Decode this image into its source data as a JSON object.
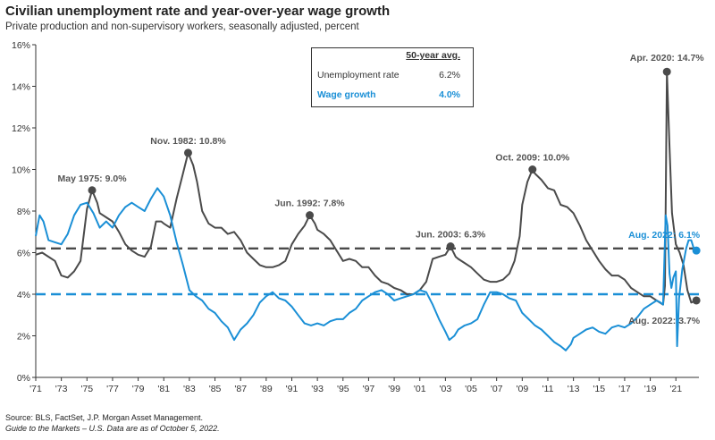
{
  "title": "Civilian unemployment rate and year-over-year wage growth",
  "subtitle": "Private production and non-supervisory workers, seasonally adjusted, percent",
  "footer": {
    "source": "Source: BLS, FactSet, J.P. Morgan Asset Management.",
    "note": "Guide to the Markets – U.S. Data are as of October 5, 2022."
  },
  "legend": {
    "header": "50-year avg.",
    "unemployment_label": "Unemployment rate",
    "unemployment_avg": "6.2%",
    "wage_label": "Wage growth",
    "wage_avg": "4.0%"
  },
  "colors": {
    "unemployment": "#4a4a4a",
    "wage": "#1a8fd6"
  },
  "chart_data": {
    "type": "line",
    "xlim": [
      1971,
      2022.8
    ],
    "ylim": [
      0,
      16
    ],
    "x_tick_labels": [
      "'71",
      "'73",
      "'75",
      "'77",
      "'79",
      "'81",
      "'83",
      "'85",
      "'87",
      "'89",
      "'91",
      "'93",
      "'95",
      "'97",
      "'99",
      "'01",
      "'03",
      "'05",
      "'07",
      "'09",
      "'11",
      "'13",
      "'15",
      "'17",
      "'19",
      "'21"
    ],
    "x_tick_values": [
      1971,
      1973,
      1975,
      1977,
      1979,
      1981,
      1983,
      1985,
      1987,
      1989,
      1991,
      1993,
      1995,
      1997,
      1999,
      2001,
      2003,
      2005,
      2007,
      2009,
      2011,
      2013,
      2015,
      2017,
      2019,
      2021
    ],
    "y_ticks": [
      0,
      2,
      4,
      6,
      8,
      10,
      12,
      14,
      16
    ],
    "y_tick_labels": [
      "0%",
      "2%",
      "4%",
      "6%",
      "8%",
      "10%",
      "12%",
      "14%",
      "16%"
    ],
    "averages": [
      {
        "series": "Unemployment rate",
        "value": 6.2
      },
      {
        "series": "Wage growth",
        "value": 4.0
      }
    ],
    "series": [
      {
        "name": "Unemployment rate",
        "points": [
          [
            1971,
            5.9
          ],
          [
            1971.5,
            6.0
          ],
          [
            1972,
            5.8
          ],
          [
            1972.5,
            5.6
          ],
          [
            1973,
            4.9
          ],
          [
            1973.5,
            4.8
          ],
          [
            1974,
            5.1
          ],
          [
            1974.5,
            5.6
          ],
          [
            1975,
            8.1
          ],
          [
            1975.4,
            9.0
          ],
          [
            1975.8,
            8.4
          ],
          [
            1976,
            7.9
          ],
          [
            1976.5,
            7.7
          ],
          [
            1977,
            7.5
          ],
          [
            1977.5,
            7.0
          ],
          [
            1978,
            6.4
          ],
          [
            1978.5,
            6.1
          ],
          [
            1979,
            5.9
          ],
          [
            1979.5,
            5.8
          ],
          [
            1980,
            6.3
          ],
          [
            1980.4,
            7.5
          ],
          [
            1980.8,
            7.5
          ],
          [
            1981,
            7.4
          ],
          [
            1981.5,
            7.2
          ],
          [
            1982,
            8.6
          ],
          [
            1982.5,
            9.8
          ],
          [
            1982.9,
            10.8
          ],
          [
            1983.3,
            10.2
          ],
          [
            1983.6,
            9.4
          ],
          [
            1984,
            8.0
          ],
          [
            1984.5,
            7.4
          ],
          [
            1985,
            7.2
          ],
          [
            1985.5,
            7.2
          ],
          [
            1986,
            6.9
          ],
          [
            1986.5,
            7.0
          ],
          [
            1987,
            6.6
          ],
          [
            1987.5,
            6.0
          ],
          [
            1988,
            5.7
          ],
          [
            1988.5,
            5.4
          ],
          [
            1989,
            5.3
          ],
          [
            1989.5,
            5.3
          ],
          [
            1990,
            5.4
          ],
          [
            1990.5,
            5.6
          ],
          [
            1991,
            6.4
          ],
          [
            1991.5,
            6.9
          ],
          [
            1992,
            7.3
          ],
          [
            1992.4,
            7.8
          ],
          [
            1992.8,
            7.4
          ],
          [
            1993,
            7.1
          ],
          [
            1993.5,
            6.9
          ],
          [
            1994,
            6.6
          ],
          [
            1994.5,
            6.1
          ],
          [
            1995,
            5.6
          ],
          [
            1995.5,
            5.7
          ],
          [
            1996,
            5.6
          ],
          [
            1996.5,
            5.3
          ],
          [
            1997,
            5.3
          ],
          [
            1997.5,
            4.9
          ],
          [
            1998,
            4.6
          ],
          [
            1998.5,
            4.5
          ],
          [
            1999,
            4.3
          ],
          [
            1999.5,
            4.2
          ],
          [
            2000,
            4.0
          ],
          [
            2000.5,
            4.0
          ],
          [
            2001,
            4.2
          ],
          [
            2001.5,
            4.6
          ],
          [
            2002,
            5.7
          ],
          [
            2002.5,
            5.8
          ],
          [
            2003,
            5.9
          ],
          [
            2003.4,
            6.3
          ],
          [
            2003.8,
            5.8
          ],
          [
            2004,
            5.7
          ],
          [
            2004.5,
            5.5
          ],
          [
            2005,
            5.3
          ],
          [
            2005.5,
            5.0
          ],
          [
            2006,
            4.7
          ],
          [
            2006.5,
            4.6
          ],
          [
            2007,
            4.6
          ],
          [
            2007.5,
            4.7
          ],
          [
            2008,
            5.0
          ],
          [
            2008.4,
            5.6
          ],
          [
            2008.8,
            6.8
          ],
          [
            2009,
            8.3
          ],
          [
            2009.4,
            9.4
          ],
          [
            2009.8,
            10.0
          ],
          [
            2010,
            9.8
          ],
          [
            2010.5,
            9.5
          ],
          [
            2011,
            9.1
          ],
          [
            2011.5,
            9.0
          ],
          [
            2012,
            8.3
          ],
          [
            2012.5,
            8.2
          ],
          [
            2013,
            7.9
          ],
          [
            2013.5,
            7.3
          ],
          [
            2014,
            6.6
          ],
          [
            2014.5,
            6.1
          ],
          [
            2015,
            5.6
          ],
          [
            2015.5,
            5.2
          ],
          [
            2016,
            4.9
          ],
          [
            2016.5,
            4.9
          ],
          [
            2017,
            4.7
          ],
          [
            2017.5,
            4.3
          ],
          [
            2018,
            4.1
          ],
          [
            2018.5,
            3.9
          ],
          [
            2019,
            3.9
          ],
          [
            2019.5,
            3.7
          ],
          [
            2020,
            3.5
          ],
          [
            2020.15,
            4.4
          ],
          [
            2020.3,
            14.7
          ],
          [
            2020.5,
            11.1
          ],
          [
            2020.7,
            7.9
          ],
          [
            2021,
            6.4
          ],
          [
            2021.3,
            6.0
          ],
          [
            2021.6,
            5.4
          ],
          [
            2021.9,
            4.2
          ],
          [
            2022.2,
            3.6
          ],
          [
            2022.6,
            3.7
          ]
        ]
      },
      {
        "name": "Wage growth",
        "points": [
          [
            1971,
            6.8
          ],
          [
            1971.3,
            7.8
          ],
          [
            1971.6,
            7.5
          ],
          [
            1972,
            6.6
          ],
          [
            1972.5,
            6.5
          ],
          [
            1973,
            6.4
          ],
          [
            1973.5,
            6.9
          ],
          [
            1974,
            7.8
          ],
          [
            1974.5,
            8.3
          ],
          [
            1975,
            8.4
          ],
          [
            1975.5,
            7.9
          ],
          [
            1976,
            7.2
          ],
          [
            1976.5,
            7.5
          ],
          [
            1977,
            7.2
          ],
          [
            1977.5,
            7.8
          ],
          [
            1978,
            8.2
          ],
          [
            1978.5,
            8.4
          ],
          [
            1979,
            8.2
          ],
          [
            1979.5,
            8.0
          ],
          [
            1980,
            8.6
          ],
          [
            1980.5,
            9.1
          ],
          [
            1981,
            8.7
          ],
          [
            1981.5,
            7.8
          ],
          [
            1982,
            6.5
          ],
          [
            1982.5,
            5.4
          ],
          [
            1983,
            4.2
          ],
          [
            1983.5,
            3.9
          ],
          [
            1984,
            3.7
          ],
          [
            1984.5,
            3.3
          ],
          [
            1985,
            3.1
          ],
          [
            1985.5,
            2.7
          ],
          [
            1986,
            2.4
          ],
          [
            1986.5,
            1.8
          ],
          [
            1987,
            2.3
          ],
          [
            1987.5,
            2.6
          ],
          [
            1988,
            3.0
          ],
          [
            1988.5,
            3.6
          ],
          [
            1989,
            3.9
          ],
          [
            1989.5,
            4.1
          ],
          [
            1990,
            3.8
          ],
          [
            1990.5,
            3.7
          ],
          [
            1991,
            3.4
          ],
          [
            1991.5,
            3.0
          ],
          [
            1992,
            2.6
          ],
          [
            1992.5,
            2.5
          ],
          [
            1993,
            2.6
          ],
          [
            1993.5,
            2.5
          ],
          [
            1994,
            2.7
          ],
          [
            1994.5,
            2.8
          ],
          [
            1995,
            2.8
          ],
          [
            1995.5,
            3.1
          ],
          [
            1996,
            3.3
          ],
          [
            1996.5,
            3.7
          ],
          [
            1997,
            3.9
          ],
          [
            1997.5,
            4.1
          ],
          [
            1998,
            4.2
          ],
          [
            1998.5,
            4.0
          ],
          [
            1999,
            3.7
          ],
          [
            1999.5,
            3.8
          ],
          [
            2000,
            3.9
          ],
          [
            2000.5,
            4.0
          ],
          [
            2001,
            4.2
          ],
          [
            2001.5,
            4.1
          ],
          [
            2002,
            3.5
          ],
          [
            2002.5,
            2.8
          ],
          [
            2003,
            2.2
          ],
          [
            2003.3,
            1.8
          ],
          [
            2003.7,
            2.0
          ],
          [
            2004,
            2.3
          ],
          [
            2004.5,
            2.5
          ],
          [
            2005,
            2.6
          ],
          [
            2005.5,
            2.8
          ],
          [
            2006,
            3.5
          ],
          [
            2006.5,
            4.1
          ],
          [
            2007,
            4.1
          ],
          [
            2007.5,
            4.0
          ],
          [
            2008,
            3.8
          ],
          [
            2008.5,
            3.7
          ],
          [
            2009,
            3.1
          ],
          [
            2009.5,
            2.8
          ],
          [
            2010,
            2.5
          ],
          [
            2010.5,
            2.3
          ],
          [
            2011,
            2.0
          ],
          [
            2011.5,
            1.7
          ],
          [
            2012,
            1.5
          ],
          [
            2012.4,
            1.3
          ],
          [
            2012.8,
            1.6
          ],
          [
            2013,
            1.9
          ],
          [
            2013.5,
            2.1
          ],
          [
            2014,
            2.3
          ],
          [
            2014.5,
            2.4
          ],
          [
            2015,
            2.2
          ],
          [
            2015.5,
            2.1
          ],
          [
            2016,
            2.4
          ],
          [
            2016.5,
            2.5
          ],
          [
            2017,
            2.4
          ],
          [
            2017.5,
            2.6
          ],
          [
            2018,
            2.9
          ],
          [
            2018.5,
            3.3
          ],
          [
            2019,
            3.5
          ],
          [
            2019.5,
            3.7
          ],
          [
            2019.8,
            3.6
          ],
          [
            2020,
            3.5
          ],
          [
            2020.2,
            7.8
          ],
          [
            2020.35,
            7.3
          ],
          [
            2020.5,
            5.0
          ],
          [
            2020.65,
            4.3
          ],
          [
            2020.8,
            4.8
          ],
          [
            2021,
            5.1
          ],
          [
            2021.1,
            1.5
          ],
          [
            2021.25,
            3.8
          ],
          [
            2021.5,
            5.2
          ],
          [
            2021.8,
            6.2
          ],
          [
            2022,
            6.6
          ],
          [
            2022.2,
            6.6
          ],
          [
            2022.4,
            6.2
          ],
          [
            2022.6,
            6.1
          ]
        ]
      }
    ],
    "annotations": [
      {
        "label": "May 1975: 9.0%",
        "x": 1975.4,
        "y": 9.0,
        "series": "Unemployment rate"
      },
      {
        "label": "Nov. 1982: 10.8%",
        "x": 1982.9,
        "y": 10.8,
        "series": "Unemployment rate"
      },
      {
        "label": "Jun. 1992: 7.8%",
        "x": 1992.4,
        "y": 7.8,
        "series": "Unemployment rate"
      },
      {
        "label": "Jun. 2003: 6.3%",
        "x": 2003.4,
        "y": 6.3,
        "series": "Unemployment rate"
      },
      {
        "label": "Oct. 2009: 10.0%",
        "x": 2009.8,
        "y": 10.0,
        "series": "Unemployment rate"
      },
      {
        "label": "Apr. 2020: 14.7%",
        "x": 2020.3,
        "y": 14.7,
        "series": "Unemployment rate"
      },
      {
        "label": "Aug. 2022: 3.7%",
        "x": 2022.6,
        "y": 3.7,
        "series": "Unemployment rate"
      },
      {
        "label": "Aug. 2022: 6.1%",
        "x": 2022.6,
        "y": 6.1,
        "series": "Wage growth"
      }
    ]
  }
}
